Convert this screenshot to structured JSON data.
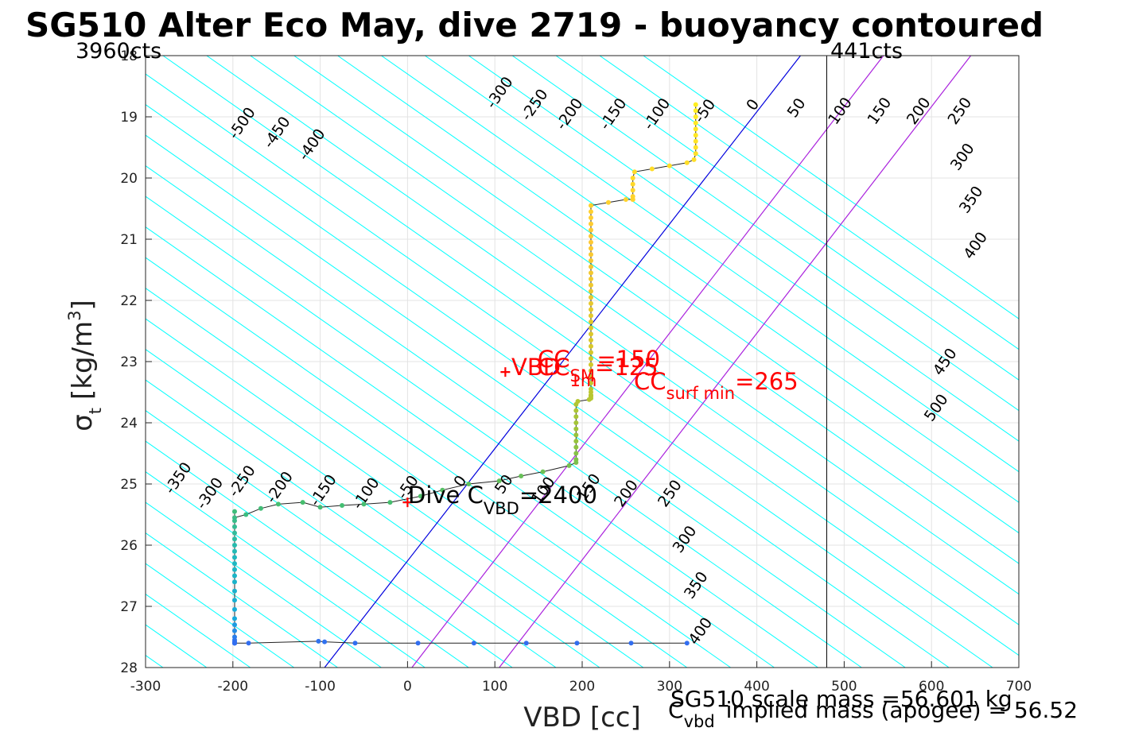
{
  "chart_data": {
    "type": "scatter",
    "title": "SG510 Alter Eco May, dive 2719 - buoyancy contoured",
    "xlabel": "VBD [cc]",
    "ylabel": "σ",
    "ylabel_sub": "t",
    "ylabel_unit": "[kg/m",
    "ylabel_unit_sup": "3",
    "ylabel_unit_close": "]",
    "xlim": [
      -300,
      700
    ],
    "ylim": [
      18,
      28
    ],
    "y_reversed": true,
    "grid": true,
    "x_ticks": [
      -300,
      -200,
      -100,
      0,
      100,
      200,
      300,
      400,
      500,
      600,
      700
    ],
    "y_ticks": [
      18,
      19,
      20,
      21,
      22,
      23,
      24,
      25,
      26,
      27,
      28
    ],
    "top_left_label": "3960cts",
    "top_right_label": "441cts",
    "vbd_limit_line_x": 480,
    "contours": {
      "slope_cc_per_sigma": 100,
      "reference_sigma": 25.3,
      "color": "#00ffff",
      "levels": [
        -800,
        -750,
        -700,
        -650,
        -600,
        -550,
        -500,
        -450,
        -400,
        -350,
        -300,
        -250,
        -200,
        -150,
        -100,
        -50,
        0,
        50,
        100,
        150,
        200,
        250,
        300,
        350,
        400,
        450,
        500,
        550,
        600,
        650,
        700,
        750,
        800,
        850,
        900,
        950,
        1000
      ],
      "labels": [
        {
          "text": "-500",
          "x": -185,
          "y": 19.15
        },
        {
          "text": "-450",
          "x": -145,
          "y": 19.3
        },
        {
          "text": "-400",
          "x": -105,
          "y": 19.5
        },
        {
          "text": "-300",
          "x": 110,
          "y": 18.65
        },
        {
          "text": "-250",
          "x": 150,
          "y": 18.85
        },
        {
          "text": "-200",
          "x": 190,
          "y": 19.0
        },
        {
          "text": "-150",
          "x": 240,
          "y": 19.0
        },
        {
          "text": "-100",
          "x": 290,
          "y": 19.0
        },
        {
          "text": "-50",
          "x": 345,
          "y": 18.95
        },
        {
          "text": "0",
          "x": 400,
          "y": 18.85
        },
        {
          "text": "50",
          "x": 450,
          "y": 18.9
        },
        {
          "text": "100",
          "x": 500,
          "y": 18.95
        },
        {
          "text": "150",
          "x": 545,
          "y": 18.95
        },
        {
          "text": "200",
          "x": 590,
          "y": 18.95
        },
        {
          "text": "250",
          "x": 637,
          "y": 18.95
        },
        {
          "text": "300",
          "x": 640,
          "y": 19.7
        },
        {
          "text": "350",
          "x": 650,
          "y": 20.4
        },
        {
          "text": "400",
          "x": 655,
          "y": 21.15
        },
        {
          "text": "450",
          "x": 620,
          "y": 23.05
        },
        {
          "text": "500",
          "x": 610,
          "y": 23.8
        },
        {
          "text": "-350",
          "x": -258,
          "y": 24.95
        },
        {
          "text": "-300",
          "x": -222,
          "y": 25.2
        },
        {
          "text": "-250",
          "x": -185,
          "y": 25.0
        },
        {
          "text": "-200",
          "x": -142,
          "y": 25.1
        },
        {
          "text": "-150",
          "x": -92,
          "y": 25.15
        },
        {
          "text": "-100",
          "x": -43,
          "y": 25.2
        },
        {
          "text": "-50",
          "x": 5,
          "y": 25.1
        },
        {
          "text": "0",
          "x": 65,
          "y": 25.0
        },
        {
          "text": "50",
          "x": 115,
          "y": 25.05
        },
        {
          "text": "100",
          "x": 160,
          "y": 25.15
        },
        {
          "text": "150",
          "x": 212,
          "y": 25.1
        },
        {
          "text": "200",
          "x": 255,
          "y": 25.2
        },
        {
          "text": "250",
          "x": 305,
          "y": 25.2
        },
        {
          "text": "300",
          "x": 322,
          "y": 25.95
        },
        {
          "text": "350",
          "x": 335,
          "y": 26.7
        },
        {
          "text": "400",
          "x": 340,
          "y": 27.45
        }
      ]
    },
    "reference_lines": [
      {
        "name": "zero buoyancy",
        "color": "#0000dd",
        "x_at_ymin": 450,
        "x_at_ymax": -95
      },
      {
        "name": "purple 1",
        "color": "#aa22dd",
        "x_at_ymin": 545,
        "x_at_ymax": 5
      },
      {
        "name": "purple 2",
        "color": "#aa22dd",
        "x_at_ymin": 645,
        "x_at_ymax": 105
      }
    ],
    "series": [
      {
        "x": [
          330,
          330,
          330,
          330,
          330,
          330,
          330,
          330,
          330,
          328,
          320,
          300,
          280,
          260,
          258,
          258,
          258,
          258,
          258,
          258,
          258,
          250,
          230,
          210,
          210,
          210,
          210,
          210,
          210,
          210,
          210,
          210,
          210,
          210,
          210,
          210,
          210,
          210,
          210,
          210,
          210,
          210,
          210,
          210,
          210,
          210,
          210,
          210,
          210,
          210,
          210,
          210,
          210,
          210,
          210,
          210,
          210,
          210,
          210,
          208,
          195,
          193,
          193,
          193,
          193,
          193,
          193,
          193,
          193,
          193,
          193,
          193,
          185,
          155,
          130,
          105,
          70,
          40,
          15,
          -20,
          -50,
          -75,
          -100,
          -120,
          -148,
          -168,
          -185,
          -198,
          -198,
          -198,
          -198,
          -198,
          -198,
          -198,
          -198,
          -198,
          -198,
          -198,
          -198,
          -198,
          -198,
          -198,
          -198,
          -198,
          -198,
          -198,
          -198,
          -198,
          -198,
          -198,
          -198,
          -198,
          -198,
          -198,
          -182,
          -102,
          -95,
          -60,
          12,
          76,
          136,
          194,
          256,
          320
        ],
        "y": [
          18.8,
          18.9,
          19.0,
          19.1,
          19.2,
          19.3,
          19.4,
          19.5,
          19.6,
          19.7,
          19.75,
          19.8,
          19.85,
          19.9,
          20.0,
          20.1,
          20.2,
          20.3,
          20.35,
          20.35,
          20.35,
          20.35,
          20.4,
          20.45,
          20.55,
          20.65,
          20.75,
          20.85,
          20.95,
          21.05,
          21.15,
          21.25,
          21.35,
          21.45,
          21.55,
          21.65,
          21.75,
          21.85,
          21.95,
          22.05,
          22.15,
          22.25,
          22.35,
          22.45,
          22.55,
          22.65,
          22.75,
          22.85,
          22.95,
          23.05,
          23.15,
          23.25,
          23.35,
          23.45,
          23.5,
          23.55,
          23.55,
          23.57,
          23.6,
          23.62,
          23.65,
          23.7,
          23.8,
          23.9,
          24.0,
          24.1,
          24.2,
          24.3,
          24.4,
          24.5,
          24.6,
          24.65,
          24.7,
          24.8,
          24.87,
          24.95,
          25.0,
          25.1,
          25.2,
          25.3,
          25.33,
          25.35,
          25.38,
          25.3,
          25.33,
          25.4,
          25.5,
          25.55,
          25.45,
          25.6,
          25.7,
          25.8,
          25.9,
          26.0,
          26.1,
          26.2,
          26.3,
          26.4,
          26.5,
          26.6,
          26.75,
          26.9,
          27.05,
          27.2,
          27.3,
          27.4,
          27.5,
          27.55,
          27.58,
          27.6,
          27.6,
          27.6,
          27.6,
          27.6,
          27.6,
          27.57,
          27.58,
          27.6,
          27.6,
          27.6,
          27.6,
          27.6,
          27.6,
          27.6
        ]
      }
    ],
    "annotations": [
      {
        "id": "vbd",
        "text": "VBD",
        "color": "#ff0000"
      },
      {
        "id": "dive_cvbd",
        "main": "Dive C",
        "sub": "VBD",
        "value": "=2400",
        "color": "#000000"
      },
      {
        "id": "cc_sm",
        "main": "CC",
        "sub": "SM",
        "value": "=125",
        "color": "#ff0000"
      },
      {
        "id": "cc_1m",
        "main": "CC",
        "sub": "1m",
        "value": "=150",
        "color": "#ff0000"
      },
      {
        "id": "cc_surf",
        "main": "CC",
        "sub": "surf min",
        "value": "=265",
        "color": "#ff0000"
      }
    ],
    "markers": [
      {
        "x": 0,
        "y": 25.3,
        "color": "#ff0000"
      },
      {
        "x": 112,
        "y": 23.17,
        "color": "#ff0000"
      }
    ],
    "footer": {
      "line1": "SG510 scale mass =56.601 kg",
      "cvbd_main": "C",
      "cvbd_sub": "vbd",
      "line2": "implied mass (apogee) = 56.52"
    }
  }
}
